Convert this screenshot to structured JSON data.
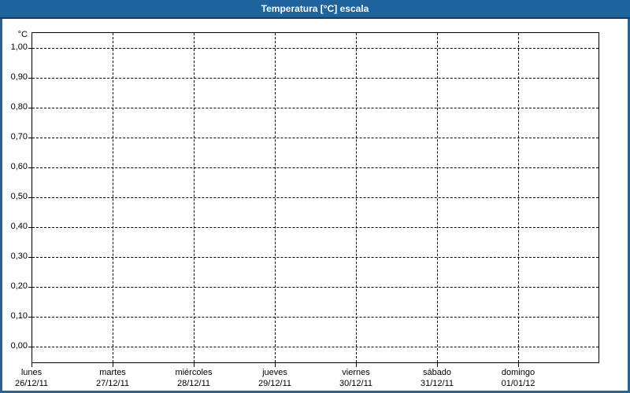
{
  "window": {
    "title": "Temperatura [°C] escala"
  },
  "colors": {
    "titlebar_bg": "#1F639C",
    "titlebar_edge": "#123D66",
    "frame": "#2B6394",
    "grid": "#000000",
    "text": "#000000",
    "plot_bg": "#FFFFFF"
  },
  "chart_data": {
    "type": "line",
    "title": "Temperatura [°C] escala",
    "xlabel": "",
    "ylabel": "°C",
    "ylim": [
      0.0,
      1.0
    ],
    "y_tick_step": 0.1,
    "y_tick_values": [
      1.0,
      0.9,
      0.8,
      0.7,
      0.6,
      0.5,
      0.4,
      0.3,
      0.2,
      0.1,
      0.0
    ],
    "y_tick_labels": [
      "1,00",
      "0,90",
      "0,80",
      "0,70",
      "0,60",
      "0,50",
      "0,40",
      "0,30",
      "0,20",
      "0,10",
      "0,00"
    ],
    "x_categories": [
      {
        "day": "lunes",
        "date": "26/12/11"
      },
      {
        "day": "martes",
        "date": "27/12/11"
      },
      {
        "day": "miércoles",
        "date": "28/12/11"
      },
      {
        "day": "jueves",
        "date": "29/12/11"
      },
      {
        "day": "viernes",
        "date": "30/12/11"
      },
      {
        "day": "sábado",
        "date": "31/12/11"
      },
      {
        "day": "domingo",
        "date": "01/01/12"
      }
    ],
    "series": [],
    "grid": "dashed",
    "legend": "none"
  }
}
